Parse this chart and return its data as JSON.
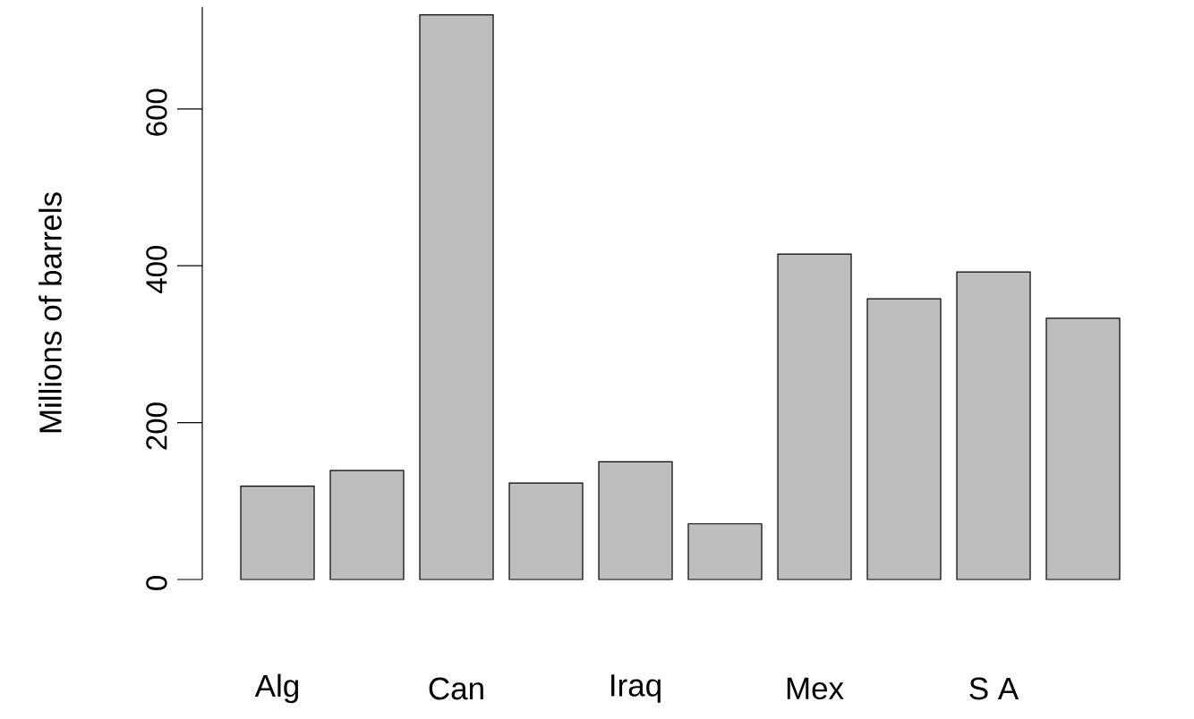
{
  "chart_data": {
    "type": "bar",
    "ylabel": "Millions of barrels",
    "categories": [
      "Alg",
      null,
      "Can",
      null,
      "Iraq",
      null,
      "Mex",
      null,
      "S A",
      null
    ],
    "values": [
      119,
      139,
      720,
      123,
      150,
      71,
      415,
      358,
      392,
      333
    ],
    "color": "#bebebe",
    "ylim": [
      0,
      730
    ],
    "yticks": [
      0,
      200,
      400,
      600
    ],
    "grid": false
  }
}
